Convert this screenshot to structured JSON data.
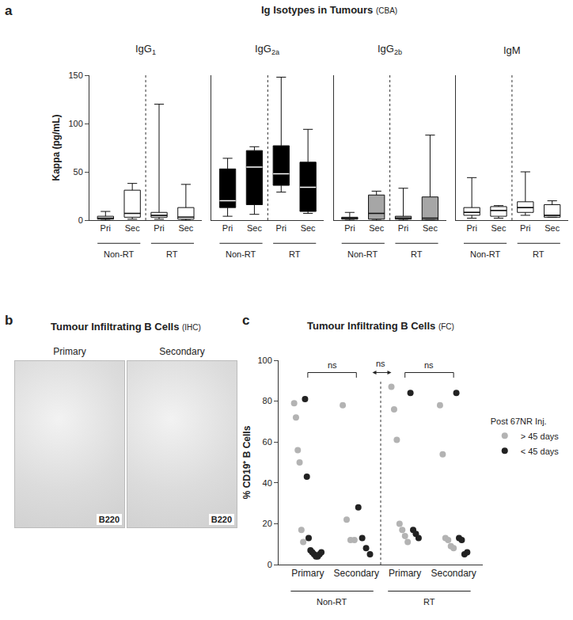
{
  "chart_data": [
    {
      "panel": "a",
      "type": "box",
      "title": "Ig Isotypes in Tumours",
      "title_note": "(CBA)",
      "y_label": "Kappa (pg/mL)",
      "ylim": [
        0,
        150
      ],
      "yticks": [
        0,
        50,
        100,
        150
      ],
      "categories": [
        "Pri",
        "Sec",
        "Pri",
        "Sec"
      ],
      "groups": [
        "Non-RT",
        "RT"
      ],
      "series": [
        {
          "name": "IgG1",
          "color": "#ffffff",
          "min": [
            0,
            1,
            1,
            0
          ],
          "q1": [
            1,
            3,
            3,
            1
          ],
          "median": [
            2,
            7,
            5,
            3
          ],
          "q3": [
            4,
            31,
            8,
            13
          ],
          "max": [
            9,
            38,
            120,
            37
          ]
        },
        {
          "name": "IgG2a",
          "color": "#000000",
          "min": [
            4,
            6,
            29,
            7
          ],
          "q1": [
            13,
            16,
            36,
            9
          ],
          "median": [
            20,
            55,
            48,
            34
          ],
          "q3": [
            53,
            72,
            77,
            60
          ],
          "max": [
            64,
            76,
            148,
            94
          ]
        },
        {
          "name": "IgG2b",
          "color": "#a6a6a6",
          "min": [
            0,
            0,
            0,
            0
          ],
          "q1": [
            1,
            1,
            1,
            0
          ],
          "median": [
            2,
            7,
            2,
            2
          ],
          "q3": [
            3,
            26,
            4,
            24
          ],
          "max": [
            8,
            30,
            33,
            88
          ]
        },
        {
          "name": "IgM",
          "color": "#ffffff",
          "min": [
            2,
            2,
            5,
            3
          ],
          "q1": [
            5,
            4,
            8,
            3
          ],
          "median": [
            8,
            10,
            13,
            5
          ],
          "q3": [
            13,
            14,
            19,
            16
          ],
          "max": [
            44,
            15,
            50,
            20
          ]
        }
      ]
    },
    {
      "panel": "b",
      "type": "image",
      "title": "Tumour Infiltrating B Cells",
      "title_note": "(IHC)",
      "images": [
        {
          "label": "Primary",
          "stain": "B220"
        },
        {
          "label": "Secondary",
          "stain": "B220"
        }
      ]
    },
    {
      "panel": "c",
      "type": "scatter",
      "title": "Tumour Infiltrating B Cells",
      "title_note": "(FC)",
      "y_label": "% CD19⁺ B Cells",
      "ylim": [
        0,
        100
      ],
      "yticks": [
        0,
        20,
        40,
        60,
        80,
        100
      ],
      "categories": [
        "Primary",
        "Secondary",
        "Primary",
        "Secondary"
      ],
      "groups": [
        "Non-RT",
        "RT"
      ],
      "legend_title": "Post 67NR Inj.",
      "series": [
        {
          "name": "> 45 days",
          "color": "#b3b3b3",
          "values": [
            [
              79,
              72,
              56,
              50,
              17,
              11
            ],
            [
              78,
              22,
              12,
              12
            ],
            [
              87,
              76,
              61,
              20,
              17,
              14,
              11
            ],
            [
              78,
              54,
              13,
              12,
              9,
              8
            ]
          ]
        },
        {
          "name": "< 45 days",
          "color": "#222222",
          "values": [
            [
              81,
              43,
              13,
              7,
              6,
              5,
              4,
              4,
              5,
              6
            ],
            [
              28,
              13,
              8,
              5
            ],
            [
              84,
              17,
              15,
              13
            ],
            [
              84,
              13,
              12,
              5,
              6
            ]
          ]
        }
      ],
      "comparisons": [
        {
          "between": [
            0,
            1
          ],
          "label": "ns"
        },
        {
          "between": [
            "Non-RT",
            "RT"
          ],
          "label": "ns"
        },
        {
          "between": [
            2,
            3
          ],
          "label": "ns"
        }
      ]
    }
  ]
}
